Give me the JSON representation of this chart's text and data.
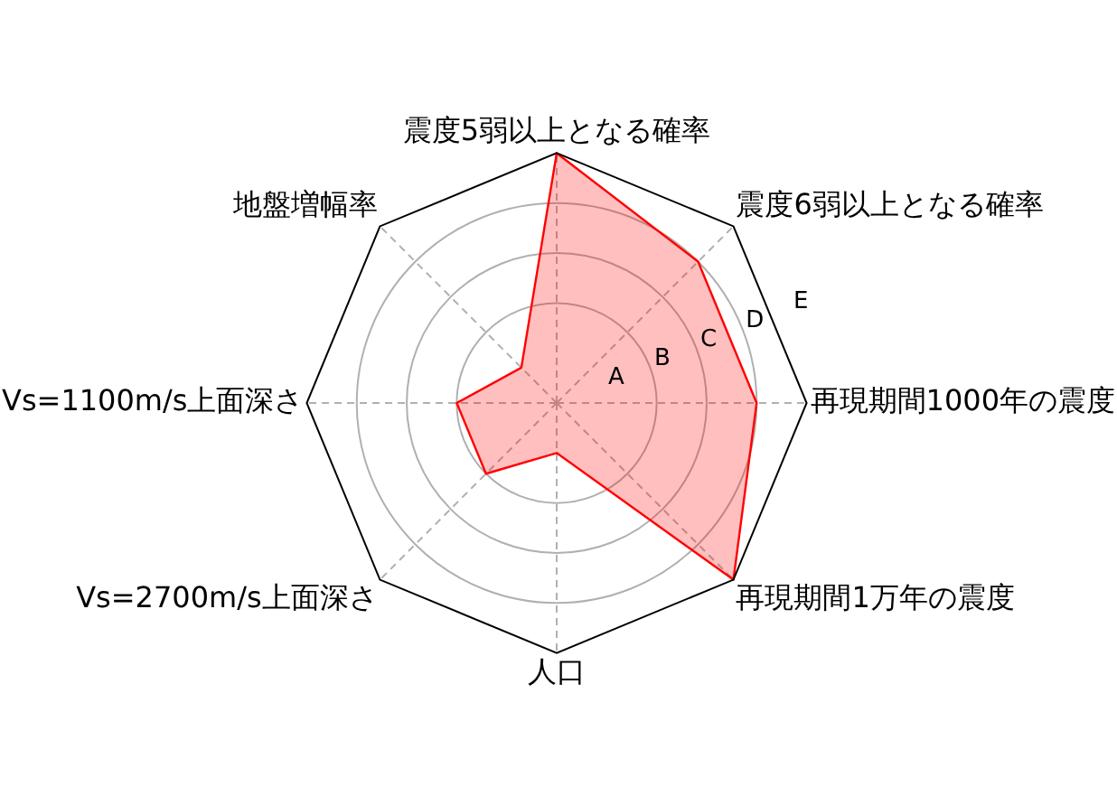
{
  "chart_data": {
    "type": "radar",
    "categories": [
      "震度5弱以上となる確率",
      "震度6弱以上となる確率",
      "再現期間1000年の震度",
      "再現期間1万年の震度",
      "人口",
      "Vs=2700m/s上面深さ",
      "Vs=1100m/s上面深さ",
      "地盤増幅率"
    ],
    "series": [
      {
        "color": "#ff0000",
        "values": [
          5,
          4,
          4,
          5,
          1,
          2,
          2,
          1
        ]
      }
    ],
    "ylim": [
      0,
      5
    ],
    "yticks": [
      {
        "value": 1,
        "label": "A"
      },
      {
        "value": 2,
        "label": "B"
      },
      {
        "value": 3,
        "label": "C"
      },
      {
        "value": 4,
        "label": "D"
      },
      {
        "value": 5,
        "label": "E"
      }
    ],
    "grid": true
  }
}
